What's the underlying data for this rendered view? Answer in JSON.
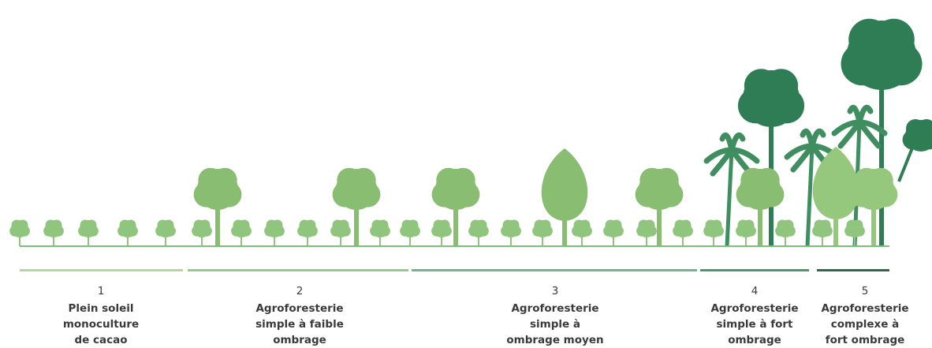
{
  "stages": [
    {
      "number": "1",
      "lines": [
        "Plein soleil",
        "monoculture",
        "de cacao"
      ]
    },
    {
      "number": "2",
      "lines": [
        "Agroforesterie",
        "simple à faible",
        "ombrage"
      ]
    },
    {
      "number": "3",
      "lines": [
        "Agroforesterie",
        "simple à",
        "ombrage moyen"
      ]
    },
    {
      "number": "4",
      "lines": [
        "Agroforesterie",
        "simple à fort",
        "ombrage"
      ]
    },
    {
      "number": "5",
      "lines": [
        "Agroforesterie",
        "complexe à",
        "fort ombrage"
      ]
    }
  ]
}
